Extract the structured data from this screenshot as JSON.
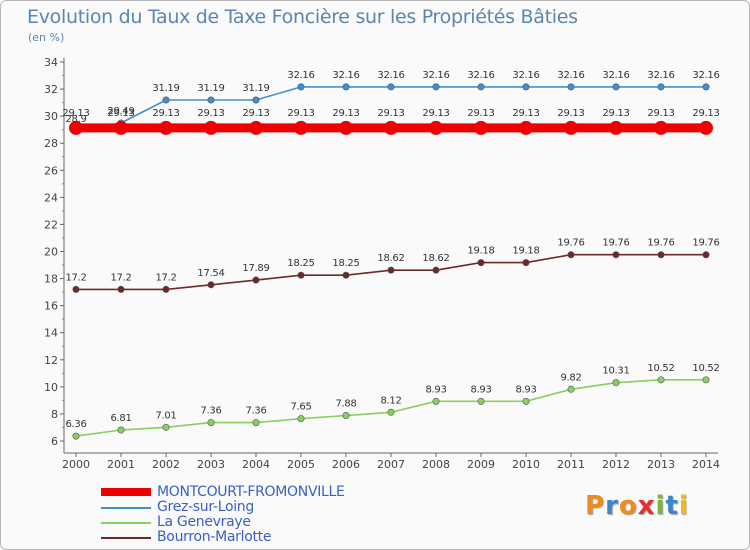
{
  "title": "Evolution du Taux de Taxe Foncière sur les Propriétés Bâties",
  "subtitle": "(en %)",
  "logo": {
    "letters": [
      "P",
      "r",
      "o",
      "x",
      "i",
      "t",
      "i"
    ],
    "colors": [
      "#f08a1c",
      "#3a86c8",
      "#f08a1c",
      "#e03030",
      "#7ab83a",
      "#3a86c8",
      "#f0b81c"
    ]
  },
  "chart_data": {
    "type": "line",
    "x": [
      2000,
      2001,
      2002,
      2003,
      2004,
      2005,
      2006,
      2007,
      2008,
      2009,
      2010,
      2011,
      2012,
      2013,
      2014
    ],
    "ylim": [
      6,
      34
    ],
    "yticks": [
      6,
      8,
      10,
      12,
      14,
      16,
      18,
      20,
      22,
      24,
      26,
      28,
      30,
      32,
      34
    ],
    "grid": false,
    "legend_position": "bottom-left",
    "series": [
      {
        "name": "MONTCOURT-FROMONVILLE",
        "color": "#ee0000",
        "values": [
          29.13,
          29.13,
          29.13,
          29.13,
          29.13,
          29.13,
          29.13,
          29.13,
          29.13,
          29.13,
          29.13,
          29.13,
          29.13,
          29.13,
          29.13
        ],
        "labels": [
          "29.13",
          "29.13",
          "29.13",
          "29.13",
          "29.13",
          "29.13",
          "29.13",
          "29.13",
          "29.13",
          "29.13",
          "29.13",
          "29.13",
          "29.13",
          "29.13",
          "29.13"
        ]
      },
      {
        "name": "Grez-sur-Loing",
        "color": "#3f8fd0",
        "values": [
          28.9,
          29.49,
          31.19,
          31.19,
          31.19,
          32.16,
          32.16,
          32.16,
          32.16,
          32.16,
          32.16,
          32.16,
          32.16,
          32.16,
          32.16
        ],
        "labels": [
          "28.9",
          "29.49",
          "31.19",
          "31.19",
          "31.19",
          "32.16",
          "32.16",
          "32.16",
          "32.16",
          "32.16",
          "32.16",
          "32.16",
          "32.16",
          "32.16",
          "32.16"
        ]
      },
      {
        "name": "La Genevraye",
        "color": "#88d060",
        "values": [
          6.36,
          6.81,
          7.01,
          7.36,
          7.36,
          7.65,
          7.88,
          8.12,
          8.93,
          8.93,
          8.93,
          9.82,
          10.31,
          10.52,
          10.52
        ],
        "labels": [
          "6.36",
          "6.81",
          "7.01",
          "7.36",
          "7.36",
          "7.65",
          "7.88",
          "8.12",
          "8.93",
          "8.93",
          "8.93",
          "9.82",
          "10.31",
          "10.52",
          "10.52"
        ]
      },
      {
        "name": "Bourron-Marlotte",
        "color": "#6a2a2a",
        "values": [
          17.2,
          17.2,
          17.2,
          17.54,
          17.89,
          18.25,
          18.25,
          18.62,
          18.62,
          19.18,
          19.18,
          19.76,
          19.76,
          19.76,
          19.76
        ],
        "labels": [
          "17.2",
          "17.2",
          "17.2",
          "17.54",
          "17.89",
          "18.25",
          "18.25",
          "18.62",
          "18.62",
          "19.18",
          "19.18",
          "19.76",
          "19.76",
          "19.76",
          "19.76"
        ]
      }
    ]
  }
}
